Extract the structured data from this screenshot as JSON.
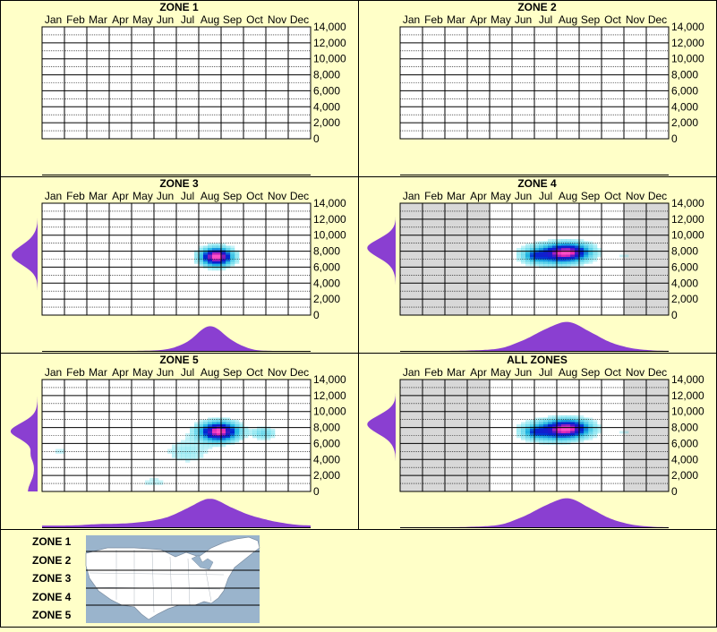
{
  "months": [
    "Jan",
    "Feb",
    "Mar",
    "Apr",
    "May",
    "Jun",
    "Jul",
    "Aug",
    "Sep",
    "Oct",
    "Nov",
    "Dec"
  ],
  "y_ticks": [
    "14,000",
    "12,000",
    "10,000",
    "8,000",
    "6,000",
    "4,000",
    "2,000",
    "0"
  ],
  "colors": {
    "background": "#ffffc8",
    "density": "#8a3fd1",
    "empty_plot": "#ffffff",
    "filled_plot": "#d8d8d8",
    "heat_low": "#40d8e8",
    "heat_mid": "#0020d0",
    "heat_high": "#ff40c0",
    "map_water": "#9ab4cc",
    "map_land": "#ffffff"
  },
  "chart_data": [
    {
      "type": "heatmap",
      "title": "ZONE 1",
      "x_categories": [
        "Jan",
        "Feb",
        "Mar",
        "Apr",
        "May",
        "Jun",
        "Jul",
        "Aug",
        "Sep",
        "Oct",
        "Nov",
        "Dec"
      ],
      "ylim": [
        0,
        14000
      ],
      "has_data": false,
      "gray_months": [],
      "blobs": [],
      "monthly_density": [],
      "elevation_density": []
    },
    {
      "type": "heatmap",
      "title": "ZONE 2",
      "x_categories": [
        "Jan",
        "Feb",
        "Mar",
        "Apr",
        "May",
        "Jun",
        "Jul",
        "Aug",
        "Sep",
        "Oct",
        "Nov",
        "Dec"
      ],
      "ylim": [
        0,
        14000
      ],
      "has_data": false,
      "gray_months": [],
      "blobs": [],
      "monthly_density": [],
      "elevation_density": []
    },
    {
      "type": "heatmap",
      "title": "ZONE 3",
      "x_categories": [
        "Jan",
        "Feb",
        "Mar",
        "Apr",
        "May",
        "Jun",
        "Jul",
        "Aug",
        "Sep",
        "Oct",
        "Nov",
        "Dec"
      ],
      "ylim": [
        0,
        14000
      ],
      "has_data": true,
      "gray_months": [],
      "blobs": [
        {
          "month": 7.3,
          "elev": 7300,
          "sx": 0.45,
          "sy": 700,
          "w": 0.55
        }
      ],
      "monthly_density": [
        0,
        0,
        0,
        0,
        0,
        0.02,
        0.2,
        0.92,
        0.25,
        0,
        0,
        0
      ],
      "elevation_density": [
        0,
        0,
        0,
        0,
        0.02,
        0.15,
        0.55,
        0.9,
        0.55,
        0.2,
        0.05,
        0,
        0,
        0,
        0
      ]
    },
    {
      "type": "heatmap",
      "title": "ZONE 4",
      "x_categories": [
        "Jan",
        "Feb",
        "Mar",
        "Apr",
        "May",
        "Jun",
        "Jul",
        "Aug",
        "Sep",
        "Oct",
        "Nov",
        "Dec"
      ],
      "ylim": [
        0,
        14000
      ],
      "has_data": true,
      "gray_months": [
        0,
        1,
        2,
        3,
        10,
        11
      ],
      "blobs": [
        {
          "month": 6.3,
          "elev": 7600,
          "sx": 0.8,
          "sy": 800,
          "w": 1.0
        },
        {
          "month": 7.1,
          "elev": 7900,
          "sx": 0.6,
          "sy": 700,
          "w": 1.3
        },
        {
          "month": 5.5,
          "elev": 7400,
          "sx": 0.3,
          "sy": 450,
          "w": 0.5
        },
        {
          "month": 9.5,
          "elev": 7500,
          "sx": 0.5,
          "sy": 500,
          "w": 0.12
        },
        {
          "month": 3.4,
          "elev": 7500,
          "sx": 0.2,
          "sy": 400,
          "w": 0.08
        }
      ],
      "monthly_density": [
        0,
        0,
        0,
        0.02,
        0.05,
        0.3,
        0.65,
        0.95,
        0.55,
        0.2,
        0.05,
        0
      ],
      "elevation_density": [
        0,
        0,
        0,
        0,
        0,
        0.05,
        0.2,
        0.65,
        1.0,
        0.5,
        0.1,
        0,
        0,
        0,
        0
      ]
    },
    {
      "type": "heatmap",
      "title": "ZONE 5",
      "x_categories": [
        "Jan",
        "Feb",
        "Mar",
        "Apr",
        "May",
        "Jun",
        "Jul",
        "Aug",
        "Sep",
        "Oct",
        "Nov",
        "Dec"
      ],
      "ylim": [
        0,
        14000
      ],
      "has_data": true,
      "gray_months": [],
      "blobs": [
        {
          "month": 7.4,
          "elev": 7500,
          "sx": 0.55,
          "sy": 750,
          "w": 1.2
        },
        {
          "month": 9.4,
          "elev": 7300,
          "sx": 0.35,
          "sy": 500,
          "w": 0.25
        },
        {
          "month": 3.5,
          "elev": 6800,
          "sx": 1.2,
          "sy": 600,
          "w": 0.06
        },
        {
          "month": 6.0,
          "elev": 5000,
          "sx": 0.8,
          "sy": 1200,
          "w": 0.12
        },
        {
          "month": 4.5,
          "elev": 1200,
          "sx": 0.9,
          "sy": 900,
          "w": 0.08
        },
        {
          "month": 0.3,
          "elev": 5000,
          "sx": 0.3,
          "sy": 800,
          "w": 0.08
        }
      ],
      "monthly_density": [
        0.05,
        0.05,
        0.1,
        0.1,
        0.15,
        0.25,
        0.55,
        0.95,
        0.55,
        0.3,
        0.15,
        0.05
      ],
      "elevation_density": [
        0.3,
        0.15,
        0.1,
        0.1,
        0.25,
        0.15,
        0.45,
        1.0,
        0.5,
        0.1,
        0.02,
        0,
        0,
        0,
        0
      ]
    },
    {
      "type": "heatmap",
      "title": "ALL ZONES",
      "x_categories": [
        "Jan",
        "Feb",
        "Mar",
        "Apr",
        "May",
        "Jun",
        "Jul",
        "Aug",
        "Sep",
        "Oct",
        "Nov",
        "Dec"
      ],
      "ylim": [
        0,
        14000
      ],
      "has_data": true,
      "gray_months": [
        0,
        1,
        2,
        3,
        10,
        11
      ],
      "blobs": [
        {
          "month": 6.3,
          "elev": 7600,
          "sx": 0.8,
          "sy": 800,
          "w": 1.0
        },
        {
          "month": 7.1,
          "elev": 7900,
          "sx": 0.6,
          "sy": 700,
          "w": 1.3
        },
        {
          "month": 5.5,
          "elev": 7400,
          "sx": 0.3,
          "sy": 450,
          "w": 0.5
        },
        {
          "month": 9.5,
          "elev": 7500,
          "sx": 0.5,
          "sy": 500,
          "w": 0.12
        },
        {
          "month": 6.5,
          "elev": 3300,
          "sx": 0.6,
          "sy": 600,
          "w": 0.06
        }
      ],
      "monthly_density": [
        0,
        0,
        0,
        0.02,
        0.05,
        0.3,
        0.65,
        0.95,
        0.55,
        0.2,
        0.05,
        0
      ],
      "elevation_density": [
        0,
        0,
        0,
        0,
        0,
        0.05,
        0.2,
        0.65,
        1.0,
        0.5,
        0.1,
        0,
        0,
        0,
        0
      ]
    }
  ],
  "legend": {
    "zones": [
      "ZONE 1",
      "ZONE 2",
      "ZONE 3",
      "ZONE 4",
      "ZONE 5"
    ],
    "map_icon": "us-map-icon"
  }
}
